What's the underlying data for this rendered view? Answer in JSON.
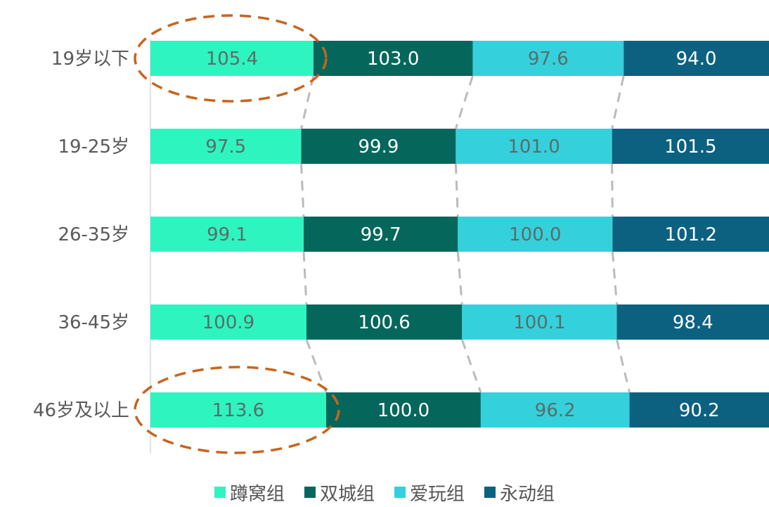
{
  "chart_data": {
    "type": "bar",
    "orientation": "horizontal",
    "stacked": true,
    "categories": [
      "19岁以下",
      "19-25岁",
      "26-35岁",
      "36-45岁",
      "46岁及以上"
    ],
    "series": [
      {
        "name": "蹲窝组",
        "color": "#2ef5c0",
        "values": [
          105.4,
          97.5,
          99.1,
          100.9,
          113.6
        ],
        "label_color": "#5d6b68"
      },
      {
        "name": "双城组",
        "color": "#05675b",
        "values": [
          103.0,
          99.9,
          99.7,
          100.6,
          100.0
        ],
        "label_color": "#ffffff"
      },
      {
        "name": "爱玩组",
        "color": "#34d1dc",
        "values": [
          97.6,
          101.0,
          100.0,
          100.1,
          96.2
        ],
        "label_color": "#5d6b68"
      },
      {
        "name": "永动组",
        "color": "#0d6180",
        "values": [
          94.0,
          101.5,
          101.2,
          98.4,
          90.2
        ],
        "label_color": "#ffffff"
      }
    ],
    "value_labels": [
      [
        "105.4",
        "97.5",
        "99.1",
        "100.9",
        "113.6"
      ],
      [
        "103.0",
        "99.9",
        "99.7",
        "100.6",
        "100.0"
      ],
      [
        "97.6",
        "101.0",
        "100.0",
        "100.1",
        "96.2"
      ],
      [
        "94.0",
        "101.5",
        "101.2",
        "98.4",
        "90.2"
      ]
    ],
    "highlighted_categories": [
      "19岁以下",
      "46岁及以上"
    ],
    "highlight_color": "#c8641e",
    "connector_color": "#bbbbbb",
    "legend_position": "bottom",
    "grid": false
  }
}
